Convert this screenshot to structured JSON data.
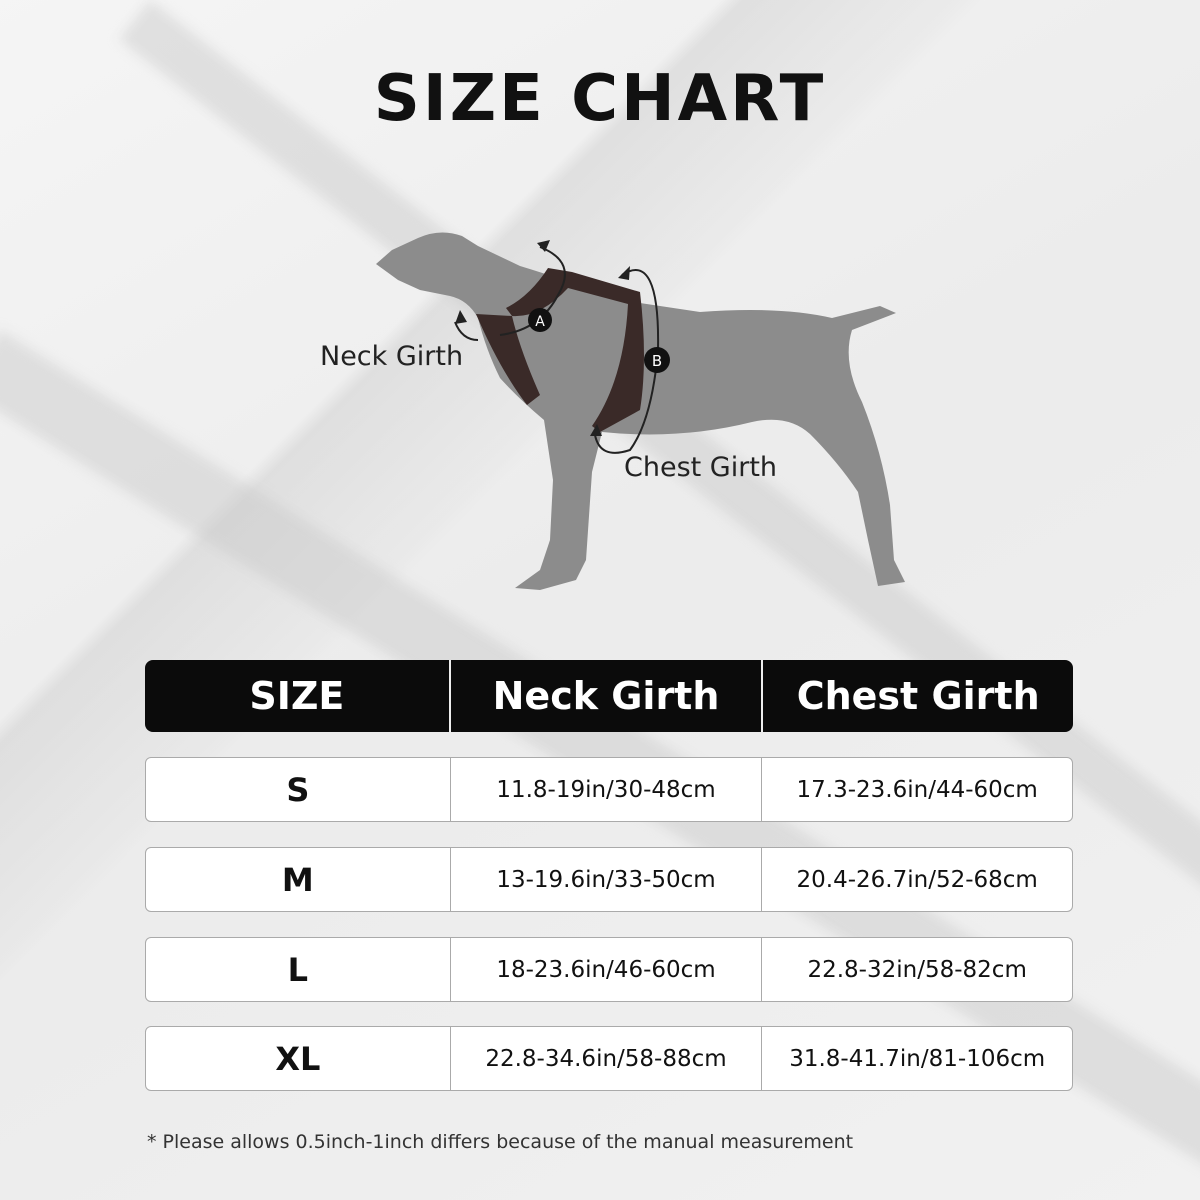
{
  "title": "SIZE CHART",
  "diagram": {
    "neck_label": "Neck Girth",
    "chest_label": "Chest Girth",
    "marker_a": "A",
    "marker_b": "B"
  },
  "table": {
    "headers": [
      "SIZE",
      "Neck Girth",
      "Chest Girth"
    ],
    "rows": [
      {
        "size": "S",
        "neck": "11.8-19in/30-48cm",
        "chest": "17.3-23.6in/44-60cm"
      },
      {
        "size": "M",
        "neck": "13-19.6in/33-50cm",
        "chest": "20.4-26.7in/52-68cm"
      },
      {
        "size": "L",
        "neck": "18-23.6in/46-60cm",
        "chest": "22.8-32in/58-82cm"
      },
      {
        "size": "XL",
        "neck": "22.8-34.6in/58-88cm",
        "chest": "31.8-41.7in/81-106cm"
      }
    ]
  },
  "footnote": "* Please allows 0.5inch-1inch differs because of the  manual measurement",
  "colors": {
    "background": "#ededed",
    "header": "#0b0b0b",
    "dog": "#8c8c8c",
    "harness": "#3a2a28"
  }
}
